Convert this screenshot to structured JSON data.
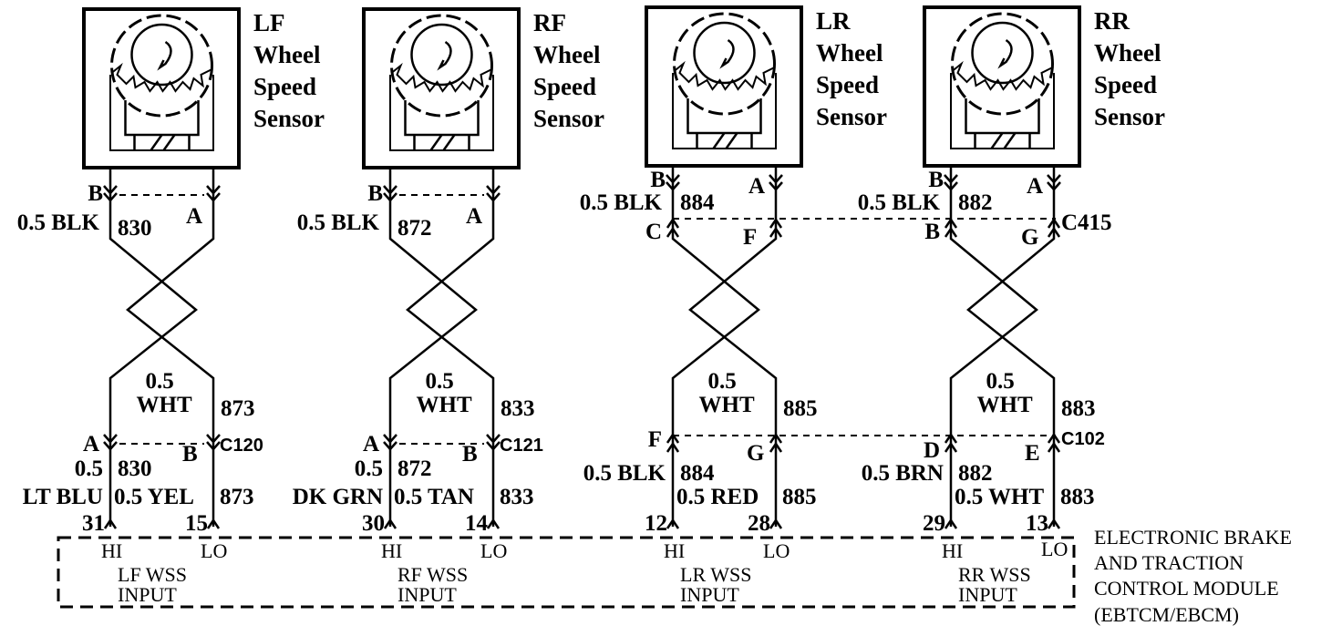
{
  "sensors": [
    {
      "id": "lf",
      "title": [
        "LF",
        "Wheel",
        "Speed",
        "Sensor"
      ],
      "top": {
        "pin_left": "B",
        "pin_right": "A",
        "wire_left": "0.5 BLK",
        "circuit_left": "830"
      },
      "pair": {
        "gauge": "0.5",
        "color": "WHT",
        "circuit": "873"
      },
      "bottom": {
        "pin_left": "A",
        "pin_right": "B",
        "connector": "C120",
        "gauge_left": "0.5",
        "circuit_left": "830",
        "color_left": "LT BLU",
        "wire_right": "0.5 YEL",
        "circuit_right": "873",
        "term_hi": "31",
        "term_lo": "15"
      },
      "module": {
        "hi": "HI",
        "lo": "LO",
        "name": "LF WSS",
        "input": "INPUT"
      }
    },
    {
      "id": "rf",
      "title": [
        "RF",
        "Wheel",
        "Speed",
        "Sensor"
      ],
      "top": {
        "pin_left": "B",
        "pin_right": "A",
        "wire_left": "0.5 BLK",
        "circuit_left": "872"
      },
      "pair": {
        "gauge": "0.5",
        "color": "WHT",
        "circuit": "833"
      },
      "bottom": {
        "pin_left": "A",
        "pin_right": "B",
        "connector": "C121",
        "gauge_left": "0.5",
        "circuit_left": "872",
        "color_left": "DK GRN",
        "wire_right": "0.5 TAN",
        "circuit_right": "833",
        "term_hi": "30",
        "term_lo": "14"
      },
      "module": {
        "hi": "HI",
        "lo": "LO",
        "name": "RF WSS",
        "input": "INPUT"
      }
    },
    {
      "id": "lr",
      "title": [
        "LR",
        "Wheel",
        "Speed",
        "Sensor"
      ],
      "top": {
        "pin_left": "B",
        "pin_right": "A",
        "wire_left": "0.5 BLK",
        "circuit_left": "884",
        "conn_left": "C",
        "conn_right": "F"
      },
      "pair": {
        "gauge": "0.5",
        "color": "WHT",
        "circuit": "885"
      },
      "bottom": {
        "pin_left": "F",
        "pin_right": "G",
        "wire_left": "0.5 BLK",
        "circuit_left": "884",
        "wire_right": "0.5 RED",
        "circuit_right": "885",
        "term_hi": "12",
        "term_lo": "28"
      },
      "module": {
        "hi": "HI",
        "lo": "LO",
        "name": "LR WSS",
        "input": "INPUT"
      }
    },
    {
      "id": "rr",
      "title": [
        "RR",
        "Wheel",
        "Speed",
        "Sensor"
      ],
      "top": {
        "pin_left": "B",
        "pin_right": "A",
        "wire_left": "0.5 BLK",
        "circuit_left": "882",
        "conn_left": "B",
        "conn_right": "G",
        "connector": "C415"
      },
      "pair": {
        "gauge": "0.5",
        "color": "WHT",
        "circuit": "883"
      },
      "bottom": {
        "pin_left": "D",
        "pin_right": "E",
        "connector": "C102",
        "wire_left": "0.5 BRN",
        "circuit_left": "882",
        "wire_right": "0.5 WHT",
        "circuit_right": "883",
        "term_hi": "29",
        "term_lo": "13"
      },
      "module": {
        "hi": "HI",
        "lo": "LO",
        "name": "RR WSS",
        "input": "INPUT"
      }
    }
  ],
  "module_label": [
    "ELECTRONIC BRAKE",
    "AND TRACTION",
    "CONTROL MODULE",
    "(EBTCM/EBCM)"
  ]
}
